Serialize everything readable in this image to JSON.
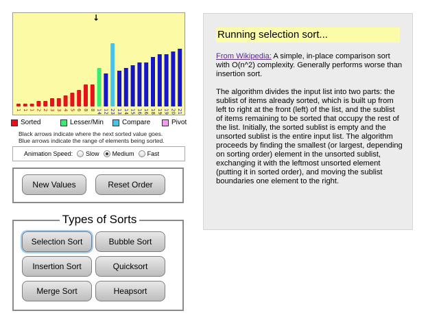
{
  "visualization": {
    "arrow_glyph": "↓",
    "bar_values": [
      1,
      1,
      1,
      2,
      2,
      3,
      3,
      4,
      5,
      6,
      8,
      8,
      14,
      12,
      23,
      13,
      14,
      15,
      16,
      16,
      18,
      19,
      19,
      20,
      21
    ],
    "bar_labels": [
      "1",
      "1",
      "1",
      "2",
      "2",
      "3",
      "3",
      "4",
      "5",
      "6",
      "8",
      "8",
      "14",
      "12",
      "23",
      "13",
      "14",
      "15",
      "16",
      "16",
      "18",
      "19",
      "19",
      "20",
      "21"
    ],
    "bar_states": [
      "sorted",
      "sorted",
      "sorted",
      "sorted",
      "sorted",
      "sorted",
      "sorted",
      "sorted",
      "sorted",
      "sorted",
      "sorted",
      "sorted",
      "lesser",
      "normal",
      "compare",
      "normal",
      "normal",
      "normal",
      "normal",
      "normal",
      "normal",
      "normal",
      "normal",
      "normal",
      "normal"
    ],
    "colors": {
      "sorted": "#e8101a",
      "lesser": "#3bea72",
      "compare": "#46c3ea",
      "normal": "#1515cc",
      "pivot": "#f39af2",
      "sorted_label": "#b01010",
      "normal_label": "#1515aa"
    }
  },
  "legend": {
    "sorted": "Sorted",
    "lesser": "Lesser/Min",
    "compare": "Compare",
    "pivot": "Pivot"
  },
  "note": {
    "line1": "Black arrows indicate where the next sorted value goes.",
    "line2": "Blue arrows indicate the range of elements being sorted."
  },
  "speed": {
    "label": "Animation Speed:",
    "options": [
      "Slow",
      "Medium",
      "Fast"
    ],
    "selected": "Medium"
  },
  "controls": {
    "new_values": "New Values",
    "reset_order": "Reset Order"
  },
  "sorts": {
    "title": "Types of Sorts",
    "selection": "Selection Sort",
    "bubble": "Bubble Sort",
    "insertion": "Insertion Sort",
    "quicksort": "Quicksort",
    "merge": "Merge Sort",
    "heapsort": "Heapsort",
    "selected": "Selection Sort"
  },
  "description": {
    "title": "Running selection sort...",
    "link": "From Wikipedia:",
    "intro": " A simple, in-place comparison sort with O(n^2) complexity. Generally performs worse than insertion sort.",
    "body": "The algorithm divides the input list into two parts: the sublist of items already sorted, which is built up from left to right at the front (left) of the list, and the sublist of items remaining to be sorted that occupy the rest of the list. Initially, the sorted sublist is empty and the unsorted sublist is the entire input list. The algorithm proceeds by finding the smallest (or largest, depending on sorting order) element in the unsorted sublist, exchanging it with the leftmost unsorted element (putting it in sorted order), and moving the sublist boundaries one element to the right."
  }
}
